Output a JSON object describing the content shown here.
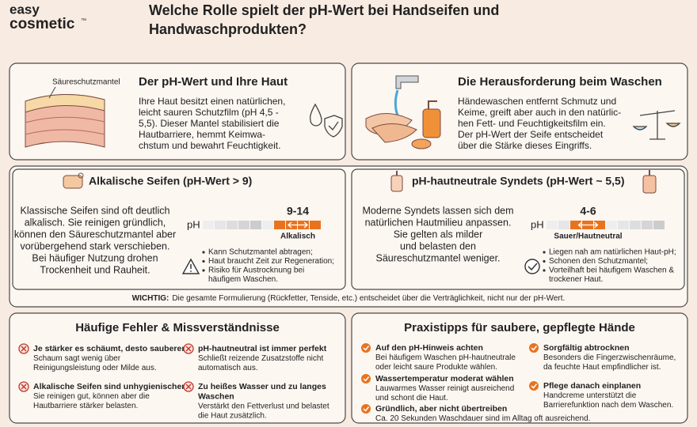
{
  "header": {
    "logo_line1": "easy",
    "logo_line2": "cosmetic",
    "logo_tm": "™",
    "title_lines": [
      "Welche Rolle spielt der pH-Wert bei Handseifen und",
      "Handwaschprodukten?"
    ]
  },
  "skin": {
    "label": "Säureschutzmantel",
    "title": "Der pH-Wert und Ihre Haut",
    "lines": [
      "Ihre Haut besitzt einen natürlichen,",
      "leicht sauren Schutzfilm (pH 4,5 -",
      "5,5). Dieser Mantel stabilisiert die",
      "Hautbarriere, hemmt Keimwa-",
      "chstum und bewahrt Feuchtigkeit."
    ]
  },
  "washing": {
    "title": "Die Herausforderung beim Waschen",
    "lines": [
      "Händewaschen entfernt Schmutz und",
      "Keime, greift aber auch in den natürlic-",
      "hen Fett- und Feuchtigkeitsfilm ein.",
      "Der pH-Wert der Seife entscheidet",
      "über die Stärke dieses Eingriffs."
    ]
  },
  "comparison": {
    "alkaline": {
      "title": "Alkalische Seifen (pH-Wert > 9)",
      "lines": [
        "Klassische Seifen sind oft deutlich",
        "alkalisch. Sie reinigen gründlich,",
        "können den Säureschutzmantel aber",
        "vorübergehend stark verschieben.",
        "Bei häufiger Nutzung drohen",
        "Trockenheit und Rauheit."
      ],
      "scale_unit": "pH",
      "range": "9-14",
      "range_label": "Alkalisch",
      "bullets": [
        [
          "Kann Schutzmantel abtragen;"
        ],
        [
          "Haut braucht Zeit zur Regeneration;"
        ],
        [
          "Risiko für Austrocknung bei",
          "häufigem Waschen."
        ]
      ]
    },
    "syndet": {
      "title": "pH-hautneutrale Syndets (pH-Wert ~ 5,5)",
      "lines": [
        "Moderne Syndets lassen sich dem",
        "natürlichen Hautmilieu anpassen.",
        "Sie gelten als milder",
        "und belasten den",
        "Säureschutzmantel weniger."
      ],
      "scale_unit": "pH",
      "range": "4-6",
      "range_label": "Sauer/Hautneutral",
      "bullets": [
        [
          "Liegen nah am natürlichen Haut-pH;"
        ],
        [
          "Schonen den Schutzmantel;"
        ],
        [
          "Vorteilhaft bei häufigem Waschen &",
          "trockener Haut."
        ]
      ]
    },
    "note": {
      "label": "WICHTIG:",
      "text": "Die gesamte Formulierung (Rückfetter, Tenside, etc.) entscheidet über die Verträglichkeit, nicht nur der pH-Wert."
    }
  },
  "mistakes": {
    "title": "Häufige Fehler & Missverständnisse",
    "items": [
      {
        "heading": [
          "Je stärker es schäumt, desto sauberer"
        ],
        "lines": [
          "Schaum sagt wenig über",
          "Reinigungsleistung oder Milde aus."
        ]
      },
      {
        "heading": [
          "pH-hautneutral ist immer perfekt"
        ],
        "lines": [
          "Schließt reizende Zusatzstoffe nicht",
          "automatisch aus."
        ]
      },
      {
        "heading": [
          "Alkalische Seifen sind unhygienischer"
        ],
        "lines": [
          "Sie reinigen gut, können aber die",
          "Hautbarriere stärker belasten."
        ]
      },
      {
        "heading": [
          "Zu heißes Wasser und zu langes",
          "Waschen"
        ],
        "lines": [
          "Verstärkt den Fettverlust und belastet",
          "die Haut zusätzlich."
        ]
      }
    ]
  },
  "tips": {
    "title": "Praxistipps für saubere, gepflegte Hände",
    "items": [
      {
        "heading": [
          "Auf den pH-Hinweis achten"
        ],
        "lines": [
          "Bei häufigem Waschen pH-hautneutrale",
          "oder leicht saure Produkte wählen."
        ]
      },
      {
        "heading": [
          "Wassertemperatur moderat wählen"
        ],
        "lines": [
          "Lauwarmes Wasser reinigt ausreichend",
          "und schont die Haut."
        ]
      },
      {
        "heading": [
          "Gründlich, aber nicht übertreiben"
        ],
        "lines": [
          "Ca. 20 Sekunden Waschdauer sind im Alltag oft ausreichend."
        ]
      },
      {
        "heading": [
          "Sorgfältig abtrocknen"
        ],
        "lines": [
          "Besonders die Fingerzwischenräume,",
          "da feuchte Haut empfindlicher ist."
        ]
      },
      {
        "heading": [
          "Pflege danach einplanen"
        ],
        "lines": [
          "Handcreme unterstützt die",
          "Barrierefunktion nach dem Waschen."
        ]
      }
    ]
  }
}
